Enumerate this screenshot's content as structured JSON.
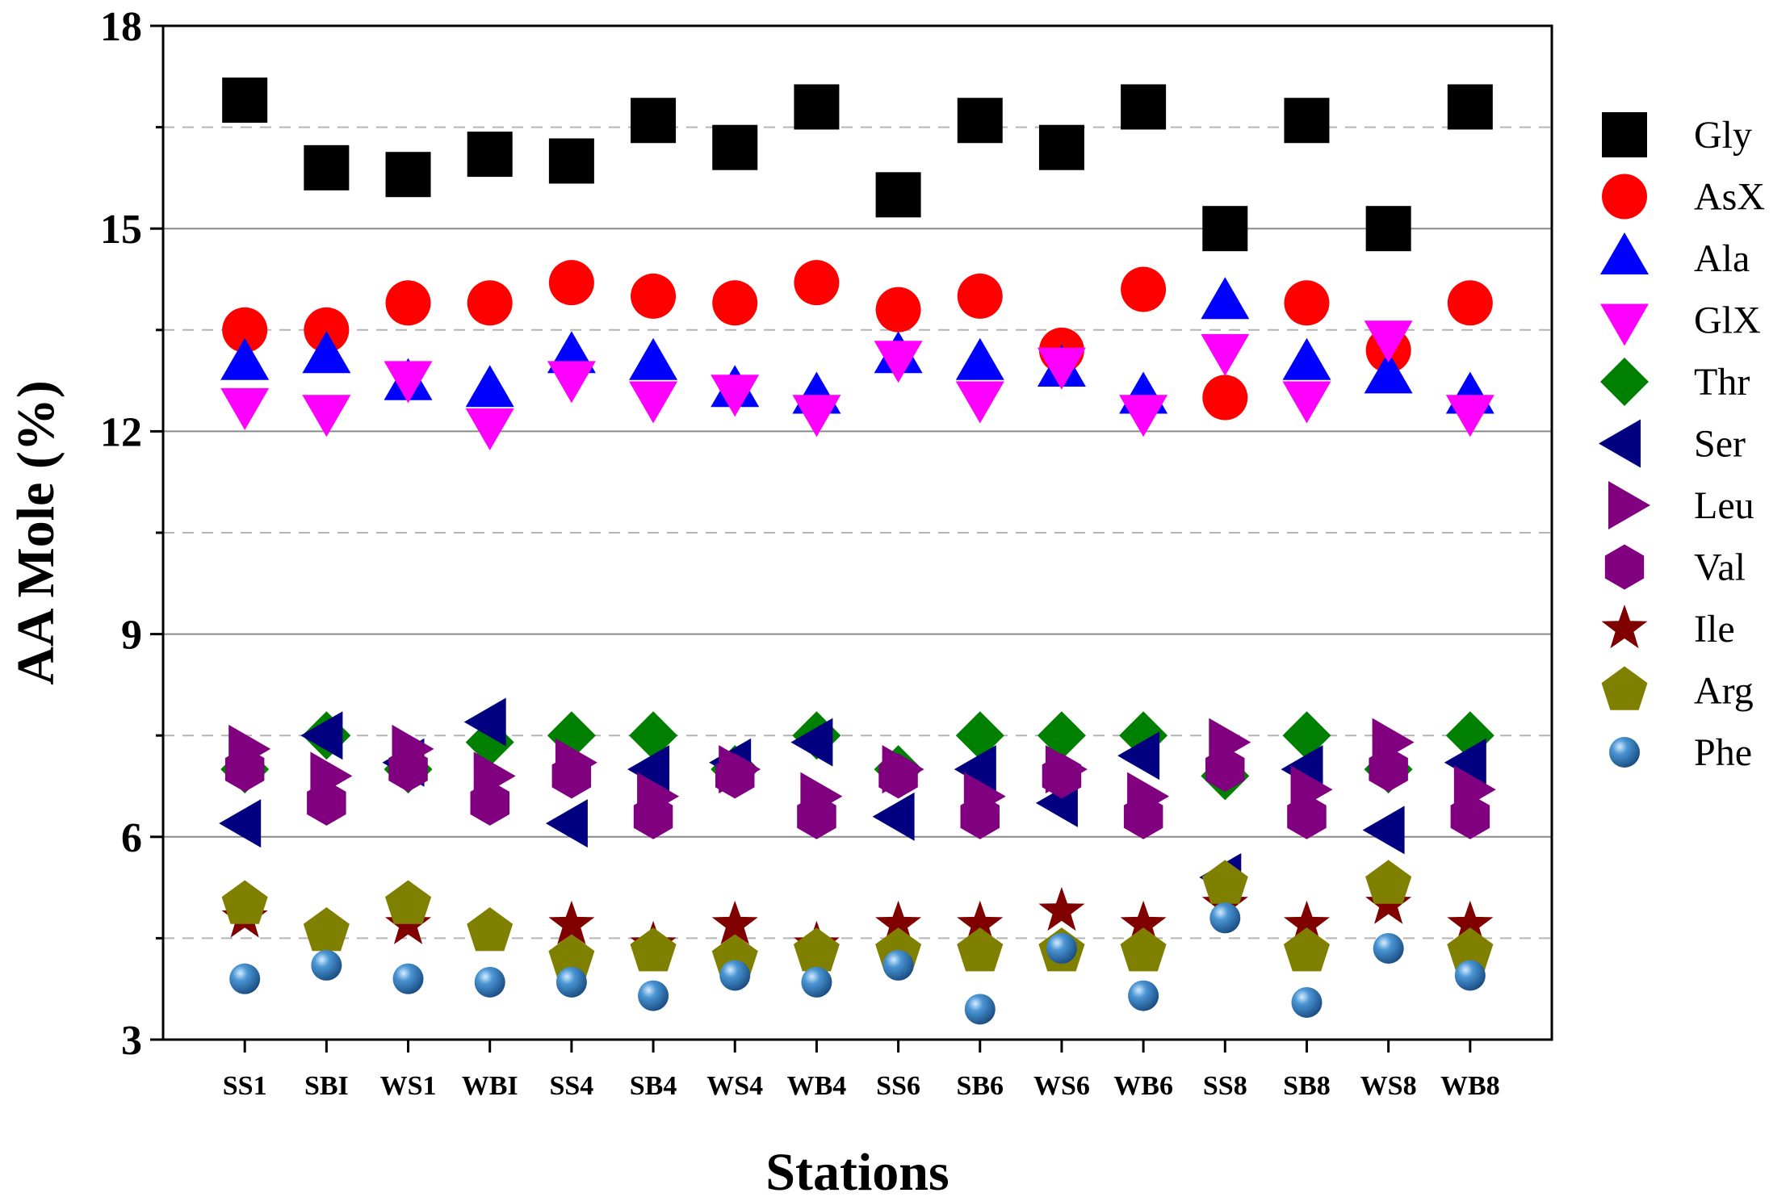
{
  "chart_data": {
    "type": "scatter",
    "title": "",
    "xlabel": "Stations",
    "ylabel": "AA Mole (%)",
    "ylim": [
      3,
      18
    ],
    "yticks": [
      3,
      6,
      9,
      12,
      15,
      18
    ],
    "grid": {
      "solid": [
        6,
        9,
        12,
        15
      ],
      "dashed": [
        4.5,
        7.5,
        10.5,
        13.5,
        16.5
      ]
    },
    "legend_position": "right",
    "categories": [
      "SS1",
      "SBI",
      "WS1",
      "WBI",
      "SS4",
      "SB4",
      "WS4",
      "WB4",
      "SS6",
      "SB6",
      "WS6",
      "WB6",
      "SS8",
      "SB8",
      "WS8",
      "WB8"
    ],
    "series": [
      {
        "name": "Gly",
        "marker": "square",
        "color": "#000000",
        "values": [
          16.9,
          15.9,
          15.8,
          16.1,
          16.0,
          16.6,
          16.2,
          16.8,
          15.5,
          16.6,
          16.2,
          16.8,
          15.0,
          16.6,
          15.0,
          16.8
        ]
      },
      {
        "name": "AsX",
        "marker": "circle",
        "color": "#ff0000",
        "values": [
          13.5,
          13.5,
          13.9,
          13.9,
          14.2,
          14.0,
          13.9,
          14.2,
          13.8,
          14.0,
          13.2,
          14.1,
          12.5,
          13.9,
          13.2,
          13.9
        ]
      },
      {
        "name": "Ala",
        "marker": "triangle-up",
        "color": "#0000ff",
        "values": [
          13.0,
          13.1,
          12.7,
          12.6,
          13.1,
          13.0,
          12.6,
          12.5,
          13.1,
          13.0,
          12.9,
          12.5,
          13.9,
          13.0,
          12.8,
          12.5
        ]
      },
      {
        "name": "GlX",
        "marker": "triangle-down",
        "color": "#ff00ff",
        "values": [
          12.4,
          12.3,
          12.8,
          12.1,
          12.8,
          12.5,
          12.6,
          12.3,
          13.1,
          12.5,
          13.0,
          12.3,
          13.2,
          12.5,
          13.4,
          12.3
        ]
      },
      {
        "name": "Thr",
        "marker": "diamond",
        "color": "#008000",
        "values": [
          7.0,
          7.5,
          7.0,
          7.4,
          7.5,
          7.5,
          7.0,
          7.5,
          7.0,
          7.5,
          7.5,
          7.5,
          6.9,
          7.5,
          7.0,
          7.5
        ]
      },
      {
        "name": "Ser",
        "marker": "triangle-left",
        "color": "#000080",
        "values": [
          6.2,
          7.5,
          7.1,
          7.7,
          6.2,
          7.0,
          7.1,
          7.4,
          6.3,
          7.0,
          6.5,
          7.2,
          5.4,
          7.0,
          6.1,
          7.1
        ]
      },
      {
        "name": "Leu",
        "marker": "triangle-right",
        "color": "#800080",
        "values": [
          7.3,
          6.9,
          7.3,
          6.9,
          7.1,
          6.6,
          7.0,
          6.6,
          7.0,
          6.6,
          7.0,
          6.6,
          7.4,
          6.7,
          7.4,
          6.7
        ]
      },
      {
        "name": "Val",
        "marker": "hexagon",
        "color": "#800080",
        "values": [
          7.0,
          6.5,
          7.0,
          6.5,
          6.9,
          6.3,
          6.9,
          6.3,
          6.9,
          6.3,
          6.9,
          6.3,
          7.0,
          6.3,
          7.0,
          6.3
        ]
      },
      {
        "name": "Ile",
        "marker": "star",
        "color": "#800000",
        "values": [
          4.8,
          4.6,
          4.7,
          4.6,
          4.7,
          4.4,
          4.7,
          4.4,
          4.7,
          4.7,
          4.9,
          4.7,
          5.0,
          4.7,
          5.0,
          4.7
        ]
      },
      {
        "name": "Arg",
        "marker": "pentagon",
        "color": "#808000",
        "values": [
          5.0,
          4.6,
          5.0,
          4.6,
          4.2,
          4.3,
          4.2,
          4.3,
          4.3,
          4.3,
          4.3,
          4.3,
          5.3,
          4.3,
          5.3,
          4.3
        ]
      },
      {
        "name": "Phe",
        "marker": "sphere",
        "color": "#3a85c4",
        "values": [
          3.9,
          4.1,
          3.9,
          3.85,
          3.85,
          3.65,
          3.95,
          3.85,
          4.1,
          3.45,
          4.35,
          3.65,
          4.8,
          3.55,
          4.35,
          3.95
        ]
      }
    ]
  }
}
